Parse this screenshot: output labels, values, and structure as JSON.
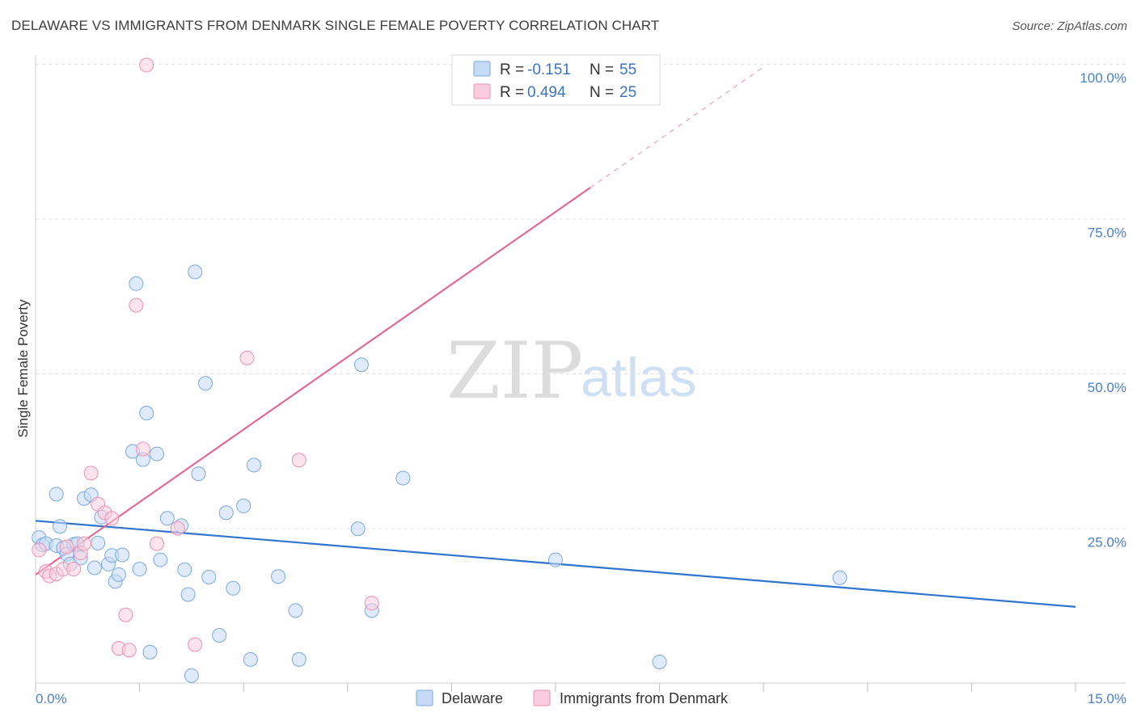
{
  "title": "DELAWARE VS IMMIGRANTS FROM DENMARK SINGLE FEMALE POVERTY CORRELATION CHART",
  "source": "Source: ZipAtlas.com",
  "watermark": {
    "part1": "ZIP",
    "part2": "atlas"
  },
  "chart_data": {
    "type": "scatter",
    "xlabel": "",
    "ylabel": "Single Female Poverty",
    "xlim": [
      0,
      15
    ],
    "ylim": [
      0,
      100
    ],
    "x_tick_labels": [
      "0.0%",
      "15.0%"
    ],
    "y_ticks": [
      25,
      50,
      75,
      100
    ],
    "y_tick_labels": [
      "25.0%",
      "50.0%",
      "75.0%",
      "100.0%"
    ],
    "grid": true,
    "legend": [
      {
        "name": "Delaware",
        "r_label": "R =",
        "r": "-0.151",
        "n_label": "N =",
        "n": "55",
        "color": "#7aa8e0",
        "fill": "#c5dbf5"
      },
      {
        "name": "Immigrants from Denmark",
        "r_label": "R =",
        "r": "0.494",
        "n_label": "N =",
        "n": "25",
        "color": "#ee8fb0",
        "fill": "#f9cddd"
      }
    ],
    "series": [
      {
        "name": "Delaware",
        "color": "#7aa8e0",
        "trend": {
          "x": [
            0,
            15
          ],
          "y": [
            26.2,
            12.3
          ]
        },
        "points": [
          [
            0.05,
            23.5
          ],
          [
            0.1,
            22.3
          ],
          [
            0.15,
            22.5
          ],
          [
            0.3,
            22.2
          ],
          [
            0.3,
            30.5
          ],
          [
            0.35,
            25.3
          ],
          [
            0.4,
            21.8
          ],
          [
            0.45,
            20.8
          ],
          [
            0.5,
            19.2
          ],
          [
            0.55,
            22.4
          ],
          [
            0.6,
            22.5
          ],
          [
            0.65,
            20.2
          ],
          [
            0.7,
            29.8
          ],
          [
            0.8,
            30.4
          ],
          [
            0.85,
            18.6
          ],
          [
            0.9,
            22.6
          ],
          [
            0.95,
            26.8
          ],
          [
            1.05,
            19.2
          ],
          [
            1.1,
            20.6
          ],
          [
            1.15,
            16.4
          ],
          [
            1.2,
            17.5
          ],
          [
            1.25,
            20.7
          ],
          [
            1.4,
            37.4
          ],
          [
            1.45,
            64.5
          ],
          [
            1.5,
            18.4
          ],
          [
            1.55,
            36.1
          ],
          [
            1.6,
            43.6
          ],
          [
            1.65,
            5.0
          ],
          [
            1.75,
            37.0
          ],
          [
            1.8,
            19.9
          ],
          [
            1.9,
            26.6
          ],
          [
            2.1,
            25.4
          ],
          [
            2.15,
            18.3
          ],
          [
            2.2,
            14.3
          ],
          [
            2.25,
            1.2
          ],
          [
            2.3,
            66.4
          ],
          [
            2.35,
            33.8
          ],
          [
            2.45,
            48.4
          ],
          [
            2.5,
            17.1
          ],
          [
            2.65,
            7.7
          ],
          [
            2.75,
            27.5
          ],
          [
            2.85,
            15.3
          ],
          [
            3.0,
            28.6
          ],
          [
            3.1,
            3.8
          ],
          [
            3.15,
            35.2
          ],
          [
            3.5,
            17.2
          ],
          [
            3.75,
            11.7
          ],
          [
            3.8,
            3.8
          ],
          [
            4.65,
            24.9
          ],
          [
            4.7,
            51.4
          ],
          [
            4.85,
            11.7
          ],
          [
            5.3,
            33.1
          ],
          [
            7.5,
            19.9
          ],
          [
            9.0,
            3.4
          ],
          [
            11.6,
            17.0
          ]
        ]
      },
      {
        "name": "Immigrants from Denmark",
        "color": "#ee8fb0",
        "trend": {
          "x": [
            0,
            8
          ],
          "y": [
            17.5,
            80.0
          ]
        },
        "trend_dashed": {
          "x": [
            8,
            10.5
          ],
          "y": [
            80.0,
            99.5
          ]
        },
        "points": [
          [
            0.05,
            21.5
          ],
          [
            0.15,
            18.0
          ],
          [
            0.2,
            17.3
          ],
          [
            0.3,
            17.6
          ],
          [
            0.4,
            18.4
          ],
          [
            0.45,
            22.0
          ],
          [
            0.55,
            18.4
          ],
          [
            0.65,
            21.0
          ],
          [
            0.7,
            22.5
          ],
          [
            0.8,
            33.9
          ],
          [
            0.9,
            28.9
          ],
          [
            1.0,
            27.5
          ],
          [
            1.1,
            26.6
          ],
          [
            1.2,
            5.6
          ],
          [
            1.3,
            11.0
          ],
          [
            1.35,
            5.3
          ],
          [
            1.45,
            61.0
          ],
          [
            1.6,
            99.8
          ],
          [
            1.55,
            37.8
          ],
          [
            1.75,
            22.5
          ],
          [
            2.05,
            25.0
          ],
          [
            2.3,
            6.2
          ],
          [
            3.05,
            52.5
          ],
          [
            3.8,
            36.0
          ],
          [
            4.85,
            12.9
          ]
        ]
      }
    ]
  }
}
